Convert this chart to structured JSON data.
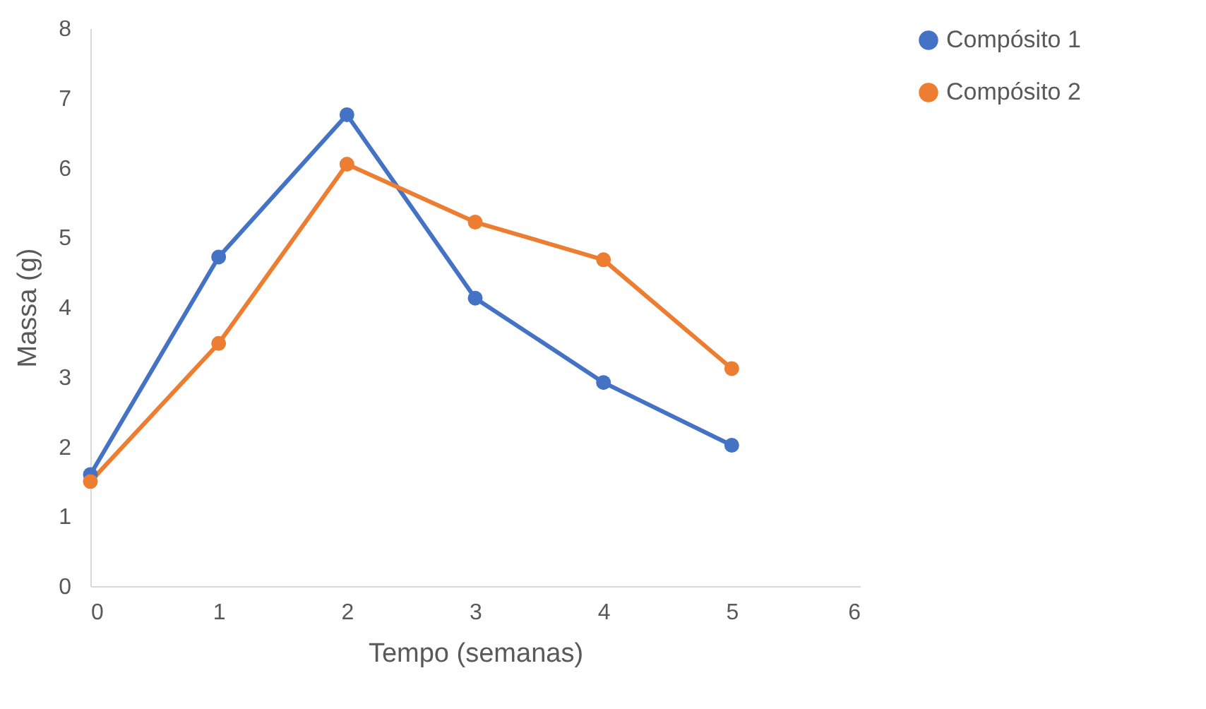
{
  "chart_data": {
    "type": "line",
    "xlabel": "Tempo (semanas)",
    "ylabel": "Massa (g)",
    "x": [
      0,
      1,
      2,
      3,
      4,
      5
    ],
    "series": [
      {
        "name": "Compósito 1",
        "color": "#4472c4",
        "values": [
          1.6,
          4.72,
          6.76,
          4.13,
          2.92,
          2.02
        ]
      },
      {
        "name": "Compósito 2",
        "color": "#ed7d31",
        "values": [
          1.5,
          3.48,
          6.05,
          5.22,
          4.68,
          3.12
        ]
      }
    ],
    "xlim": [
      0,
      6
    ],
    "xticks": [
      0,
      1,
      2,
      3,
      4,
      5,
      6
    ],
    "ylim": [
      0,
      8
    ],
    "yticks": [
      0,
      1,
      2,
      3,
      4,
      5,
      6,
      7,
      8
    ],
    "grid": false,
    "legend": "right",
    "marker": "circle",
    "line_style": "solid"
  }
}
